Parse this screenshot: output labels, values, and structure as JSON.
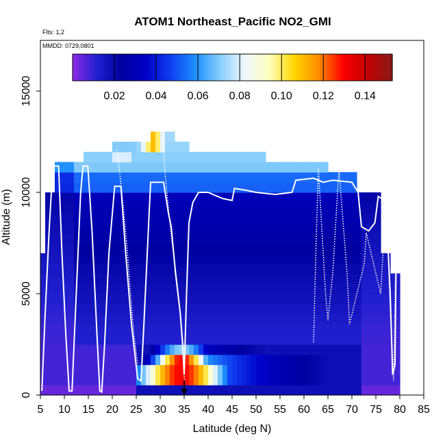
{
  "chart_data": {
    "type": "heatmap",
    "title": "ATOM1 Northeast_Pacific NO2_GMI",
    "flights_label": "Flts: 1,2",
    "mmdd_label": "MMDD: 0729,0801",
    "xlabel": "Latitude (deg N)",
    "ylabel": "Altitude (m)",
    "xlim": [
      5,
      85
    ],
    "ylim": [
      0,
      17500
    ],
    "x_ticks": [
      5,
      10,
      15,
      20,
      25,
      30,
      35,
      40,
      45,
      50,
      55,
      60,
      65,
      70,
      75,
      80,
      85
    ],
    "y_ticks": [
      0,
      5000,
      10000,
      15000
    ],
    "colorbar": {
      "range": [
        0,
        0.153
      ],
      "ticks": [
        0.02,
        0.04,
        0.06,
        0.08,
        0.1,
        0.12,
        0.14
      ],
      "tick_labels": [
        "0.02",
        "0.04",
        "0.06",
        "0.08",
        "0.10",
        "0.12",
        "0.14"
      ],
      "colors": [
        "#8a2be2",
        "#2020d0",
        "#0000a0",
        "#0000c8",
        "#1040f0",
        "#1e90ff",
        "#87cefa",
        "#f0f8ff",
        "#ffffc0",
        "#ffd700",
        "#ff8c00",
        "#ff0000",
        "#c00000",
        "#8b1a1a"
      ]
    },
    "grid_cell": {
      "lat_step": 1,
      "alt_step": 500
    },
    "profile_color": "#ffffff",
    "flight_track": [
      [
        5.3,
        200
      ],
      [
        6.0,
        4000
      ],
      [
        6.8,
        8000
      ],
      [
        7.6,
        11300
      ],
      [
        8.8,
        11300
      ],
      [
        9.5,
        7000
      ],
      [
        10.3,
        3000
      ],
      [
        11.0,
        200
      ],
      [
        11.6,
        200
      ],
      [
        12.3,
        4000
      ],
      [
        13.4,
        10000
      ],
      [
        13.9,
        11300
      ],
      [
        14.9,
        11300
      ],
      [
        15.8,
        8000
      ],
      [
        16.8,
        3000
      ],
      [
        17.4,
        200
      ],
      [
        17.8,
        150
      ],
      [
        18.4,
        2500
      ],
      [
        19.3,
        7000
      ],
      [
        20.5,
        10300
      ],
      [
        21.8,
        10300
      ],
      [
        22.8,
        7000
      ],
      [
        24.0,
        3500
      ],
      [
        25.3,
        800
      ],
      [
        26.0,
        700
      ],
      [
        26.6,
        3500
      ],
      [
        27.3,
        7000
      ],
      [
        28.0,
        10500
      ],
      [
        30.7,
        10500
      ],
      [
        31.7,
        9000
      ],
      [
        32.3,
        8300
      ],
      [
        33.2,
        6000
      ],
      [
        34.2,
        4000
      ],
      [
        34.7,
        2500
      ],
      [
        35.0,
        1000
      ],
      [
        35.5,
        5000
      ],
      [
        36.0,
        8500
      ],
      [
        36.8,
        9500
      ],
      [
        38.0,
        10000
      ],
      [
        40.0,
        10000
      ],
      [
        43.0,
        9700
      ],
      [
        45.0,
        9600
      ],
      [
        45.5,
        10200
      ],
      [
        48.0,
        10100
      ],
      [
        50.0,
        10000
      ],
      [
        54.0,
        9900
      ],
      [
        57.5,
        10000
      ],
      [
        58.3,
        10600
      ],
      [
        62.0,
        10700
      ],
      [
        64.0,
        10500
      ],
      [
        66.0,
        10600
      ],
      [
        70.0,
        10500
      ],
      [
        71.3,
        10000
      ],
      [
        72.0,
        8300
      ],
      [
        73.5,
        8100
      ],
      [
        74.8,
        8500
      ],
      [
        75.5,
        9800
      ],
      [
        76.8,
        9600
      ],
      [
        77.4,
        8000
      ],
      [
        78.0,
        5000
      ],
      [
        78.5,
        1000
      ],
      [
        79.0,
        1500
      ],
      [
        79.2,
        6000
      ]
    ],
    "flight_track_dotted": [
      [
        30.5,
        12700
      ],
      [
        31.0,
        11000
      ],
      [
        31.8,
        9000
      ],
      [
        32.5,
        7500
      ],
      [
        33.3,
        6000
      ],
      [
        34.0,
        4500
      ],
      [
        34.7,
        2200
      ],
      [
        35.1,
        600
      ],
      [
        21.0,
        12100
      ],
      [
        22.0,
        10000
      ],
      [
        23.0,
        7500
      ],
      [
        23.8,
        5000
      ],
      [
        24.5,
        3000
      ],
      [
        25.3,
        1500
      ],
      [
        62.0,
        2600
      ],
      [
        62.5,
        7200
      ],
      [
        63.0,
        11200
      ],
      [
        64.5,
        5000
      ],
      [
        65.0,
        3700
      ],
      [
        66.0,
        6000
      ],
      [
        67.3,
        11200
      ],
      [
        68.0,
        9000
      ],
      [
        69.0,
        6000
      ],
      [
        69.5,
        3500
      ],
      [
        72.6,
        6500
      ],
      [
        73.0,
        8000
      ],
      [
        76.0,
        5000
      ],
      [
        77.0,
        9000
      ],
      [
        77.5,
        7300
      ],
      [
        78.0,
        4200
      ],
      [
        78.7,
        700
      ],
      [
        79.1,
        6000
      ]
    ],
    "arrow_marker": {
      "lat": 35,
      "alt": 0
    }
  }
}
